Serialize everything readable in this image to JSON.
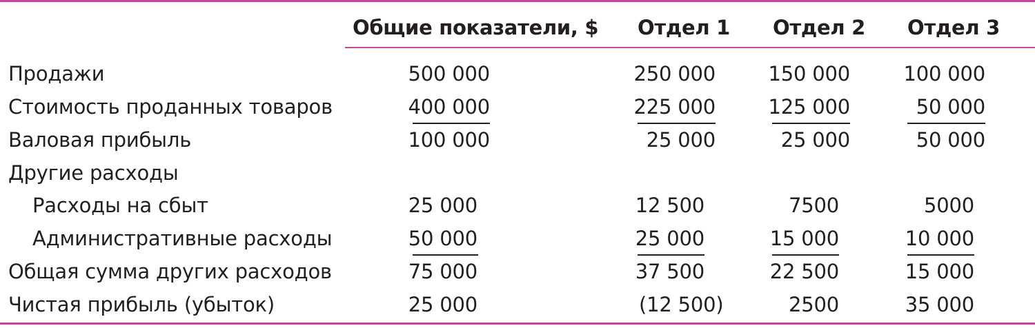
{
  "colors": {
    "rule": "#c04a9a",
    "text": "#231f20"
  },
  "headers": {
    "total": "Общие показатели, $",
    "dept1": "Отдел 1",
    "dept2": "Отдел 2",
    "dept3": "Отдел 3"
  },
  "rows": [
    {
      "label": "Продажи",
      "total": "500 000",
      "dept1": "250 000",
      "dept2": "150 000",
      "dept3": "100 000"
    },
    {
      "label": "Стоимость проданных товаров",
      "total": "400 000",
      "dept1": "225 000",
      "dept2": "125 000",
      "dept3": "50 000"
    },
    {
      "label": "Валовая прибыль",
      "total": "100 000",
      "dept1": "25 000",
      "dept2": "25 000",
      "dept3": "50 000"
    },
    {
      "label": "Другие расходы",
      "total": "",
      "dept1": "",
      "dept2": "",
      "dept3": ""
    },
    {
      "label": "Расходы на сбыт",
      "total": "25 000",
      "dept1": "12 500",
      "dept2": "7500",
      "dept3": "5000"
    },
    {
      "label": "Административные расходы",
      "total": "50 000",
      "dept1": "25 000",
      "dept2": "15 000",
      "dept3": "10 000"
    },
    {
      "label": "Общая сумма других расходов",
      "total": "75 000",
      "dept1": "37 500",
      "dept2": "22 500",
      "dept3": "15 000"
    },
    {
      "label": "Чистая прибыль (убыток)",
      "total": "25 000",
      "dept1": "(12 500)",
      "dept2": "2500",
      "dept3": "35 000"
    }
  ]
}
